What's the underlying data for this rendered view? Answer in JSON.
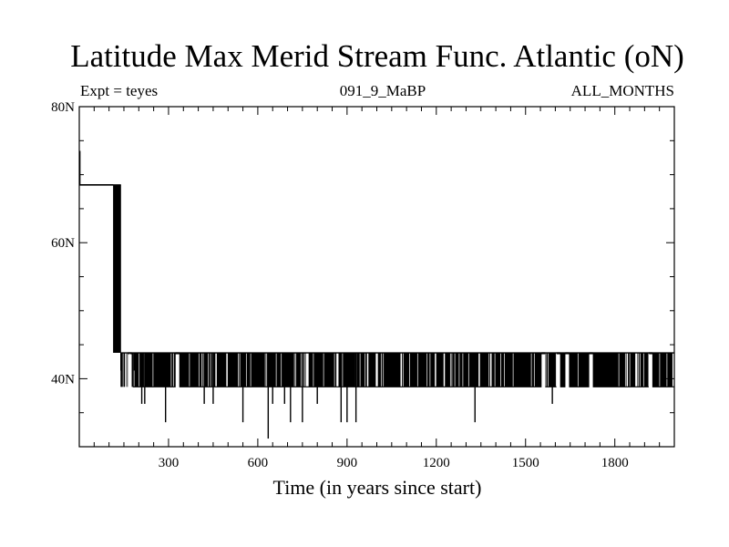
{
  "chart_data": {
    "type": "line",
    "title": "Latitude Max Merid Stream Func. Atlantic (oN)",
    "subtitle_left": "Expt = teyes",
    "subtitle_center": "091_9_MaBP",
    "subtitle_right": "ALL_MONTHS",
    "xlabel": "Time (in years since start)",
    "ylabel": "",
    "xlim": [
      0,
      2000
    ],
    "ylim": [
      30,
      80
    ],
    "x_ticks": [
      300,
      600,
      900,
      1200,
      1500,
      1800
    ],
    "x_tick_labels": [
      "300",
      "600",
      "900",
      "1200",
      "1500",
      "1800"
    ],
    "y_ticks": [
      40,
      60,
      80
    ],
    "y_tick_labels": [
      "40N",
      "60N",
      "80N"
    ],
    "grid": false,
    "legend": "none",
    "color": "#000000",
    "series": [
      {
        "segments": [
          {
            "x_start": 0,
            "x_end": 115,
            "value": 68.5
          },
          {
            "x_start": 115,
            "x_end": 140,
            "low": 43.8,
            "high": 68.5,
            "pattern": "rapid oscillation"
          },
          {
            "x_start": 140,
            "x_end": 2000,
            "low": 38.8,
            "high": 43.8,
            "pattern": "rapid oscillation"
          }
        ],
        "initial_spike": {
          "x": 2,
          "value": 73.5
        },
        "dips": [
          {
            "x": 140,
            "value": 41.2
          },
          {
            "x": 185,
            "value": 41.2
          },
          {
            "x": 210,
            "value": 36.3
          },
          {
            "x": 220,
            "value": 36.3
          },
          {
            "x": 290,
            "value": 33.6
          },
          {
            "x": 420,
            "value": 36.3
          },
          {
            "x": 450,
            "value": 36.3
          },
          {
            "x": 550,
            "value": 33.6
          },
          {
            "x": 635,
            "value": 31.2
          },
          {
            "x": 650,
            "value": 36.3
          },
          {
            "x": 690,
            "value": 36.3
          },
          {
            "x": 710,
            "value": 33.6
          },
          {
            "x": 750,
            "value": 33.6
          },
          {
            "x": 800,
            "value": 36.3
          },
          {
            "x": 880,
            "value": 33.6
          },
          {
            "x": 900,
            "value": 33.6
          },
          {
            "x": 930,
            "value": 33.6
          },
          {
            "x": 1330,
            "value": 33.6
          },
          {
            "x": 1590,
            "value": 36.3
          }
        ],
        "gaps": [
          {
            "x": 170,
            "value": 43.8
          },
          {
            "x": 330,
            "value": 43.8
          },
          {
            "x": 1560,
            "value": 43.8
          },
          {
            "x": 1610,
            "value": 43.8
          },
          {
            "x": 1640,
            "value": 43.8
          },
          {
            "x": 1720,
            "value": 43.8
          },
          {
            "x": 1920,
            "value": 43.8
          }
        ]
      }
    ]
  }
}
